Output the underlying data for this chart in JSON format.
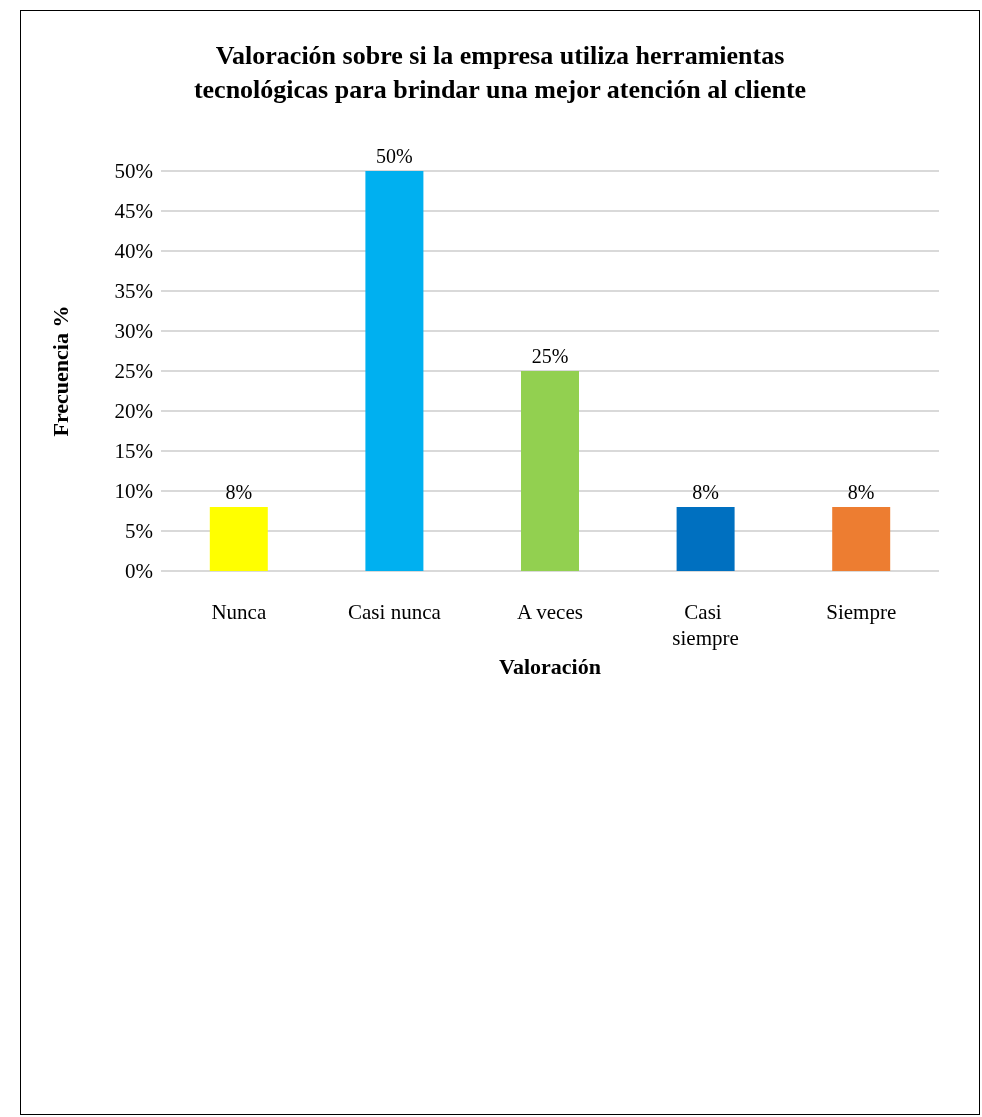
{
  "chart_data": {
    "type": "bar",
    "title": "Valoración sobre si la empresa utiliza herramientas\ntecnológicas para brindar una mejor atención al cliente",
    "xlabel": "Valoración",
    "ylabel": "Frecuencia %",
    "categories": [
      "Nunca",
      "Casi nunca",
      "A veces",
      "Casi siempre",
      "Siempre"
    ],
    "values": [
      8,
      50,
      25,
      8,
      8
    ],
    "value_labels": [
      "8%",
      "50%",
      "25%",
      "8%",
      "8%"
    ],
    "colors": [
      "#ffff00",
      "#00b0f0",
      "#92d050",
      "#0070c0",
      "#ed7d31"
    ],
    "ylim": [
      0,
      50
    ],
    "yticks": [
      {
        "value": 0,
        "label": "0%"
      },
      {
        "value": 5,
        "label": "5%"
      },
      {
        "value": 10,
        "label": "10%"
      },
      {
        "value": 15,
        "label": "15%"
      },
      {
        "value": 20,
        "label": "20%"
      },
      {
        "value": 25,
        "label": "25%"
      },
      {
        "value": 30,
        "label": "30%"
      },
      {
        "value": 35,
        "label": "35%"
      },
      {
        "value": 40,
        "label": "40%"
      },
      {
        "value": 45,
        "label": "45%"
      },
      {
        "value": 50,
        "label": "50%"
      }
    ],
    "grid": "y"
  }
}
